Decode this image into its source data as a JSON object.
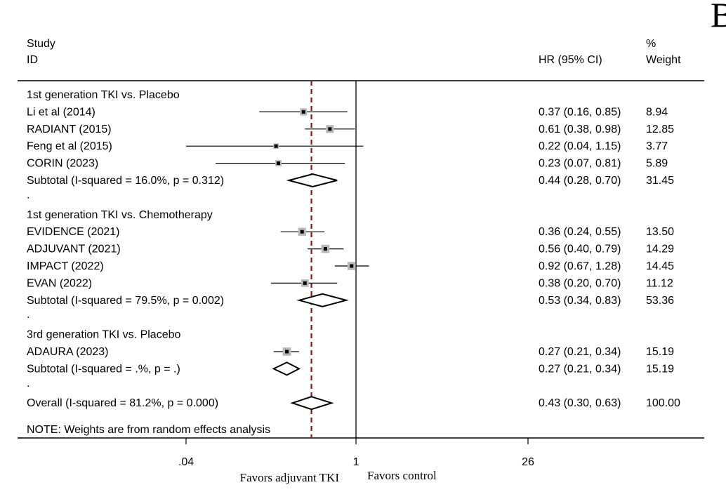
{
  "chart_data": {
    "type": "forest",
    "panel_label": "B",
    "header": {
      "study_col": [
        "Study",
        "ID"
      ],
      "hr_col": "HR (95% CI)",
      "weight_col": [
        "%",
        "Weight"
      ]
    },
    "x_scale": "log",
    "xlim": [
      0.04,
      26
    ],
    "x_ticks": [
      {
        "value": 0.04,
        "label": ".04"
      },
      {
        "value": 1,
        "label": "1"
      },
      {
        "value": 26,
        "label": "26"
      }
    ],
    "null_line": 1,
    "overall_line": 0.43,
    "favors_left": "Favors adjuvant TKI",
    "favors_right": "Favors control",
    "note": "NOTE: Weights are from random effects analysis",
    "rows": [
      {
        "kind": "group",
        "label": "1st generation TKI vs. Placebo"
      },
      {
        "kind": "study",
        "label": "Li et al (2014)",
        "hr": 0.37,
        "lo": 0.16,
        "hi": 0.85,
        "ci": "0.37 (0.16, 0.85)",
        "weight": "8.94",
        "w": 8.94
      },
      {
        "kind": "study",
        "label": "RADIANT (2015)",
        "hr": 0.61,
        "lo": 0.38,
        "hi": 0.98,
        "ci": "0.61 (0.38, 0.98)",
        "weight": "12.85",
        "w": 12.85
      },
      {
        "kind": "study",
        "label": "Feng et al (2015)",
        "hr": 0.22,
        "lo": 0.04,
        "hi": 1.15,
        "ci": "0.22 (0.04, 1.15)",
        "weight": "3.77",
        "w": 3.77
      },
      {
        "kind": "study",
        "label": "CORIN (2023)",
        "hr": 0.23,
        "lo": 0.07,
        "hi": 0.81,
        "ci": "0.23 (0.07, 0.81)",
        "weight": "5.89",
        "w": 5.89
      },
      {
        "kind": "subtotal",
        "label": "Subtotal  (I-squared = 16.0%, p = 0.312)",
        "hr": 0.44,
        "lo": 0.28,
        "hi": 0.7,
        "ci": "0.44 (0.28, 0.70)",
        "weight": "31.45"
      },
      {
        "kind": "spacer",
        "label": "."
      },
      {
        "kind": "group",
        "label": "1st generation TKI vs. Chemotherapy"
      },
      {
        "kind": "study",
        "label": "EVIDENCE (2021)",
        "hr": 0.36,
        "lo": 0.24,
        "hi": 0.55,
        "ci": "0.36 (0.24, 0.55)",
        "weight": "13.50",
        "w": 13.5
      },
      {
        "kind": "study",
        "label": "ADJUVANT (2021)",
        "hr": 0.56,
        "lo": 0.4,
        "hi": 0.79,
        "ci": "0.56 (0.40, 0.79)",
        "weight": "14.29",
        "w": 14.29
      },
      {
        "kind": "study",
        "label": "IMPACT (2022)",
        "hr": 0.92,
        "lo": 0.67,
        "hi": 1.28,
        "ci": "0.92 (0.67, 1.28)",
        "weight": "14.45",
        "w": 14.45
      },
      {
        "kind": "study",
        "label": "EVAN (2022)",
        "hr": 0.38,
        "lo": 0.2,
        "hi": 0.7,
        "ci": "0.38 (0.20, 0.70)",
        "weight": "11.12",
        "w": 11.12
      },
      {
        "kind": "subtotal",
        "label": "Subtotal  (I-squared = 79.5%, p = 0.002)",
        "hr": 0.53,
        "lo": 0.34,
        "hi": 0.83,
        "ci": "0.53 (0.34, 0.83)",
        "weight": "53.36"
      },
      {
        "kind": "spacer",
        "label": "."
      },
      {
        "kind": "group",
        "label": "3rd generation TKI vs. Placebo"
      },
      {
        "kind": "study",
        "label": "ADAURA (2023)",
        "hr": 0.27,
        "lo": 0.21,
        "hi": 0.34,
        "ci": "0.27 (0.21, 0.34)",
        "weight": "15.19",
        "w": 15.19
      },
      {
        "kind": "subtotal",
        "label": "Subtotal  (I-squared = .%, p = .)",
        "hr": 0.27,
        "lo": 0.21,
        "hi": 0.34,
        "ci": "0.27 (0.21, 0.34)",
        "weight": "15.19"
      },
      {
        "kind": "spacer",
        "label": "."
      },
      {
        "kind": "overall",
        "label": "Overall  (I-squared = 81.2%, p = 0.000)",
        "hr": 0.43,
        "lo": 0.3,
        "hi": 0.63,
        "ci": "0.43 (0.30, 0.63)",
        "weight": "100.00"
      }
    ]
  }
}
